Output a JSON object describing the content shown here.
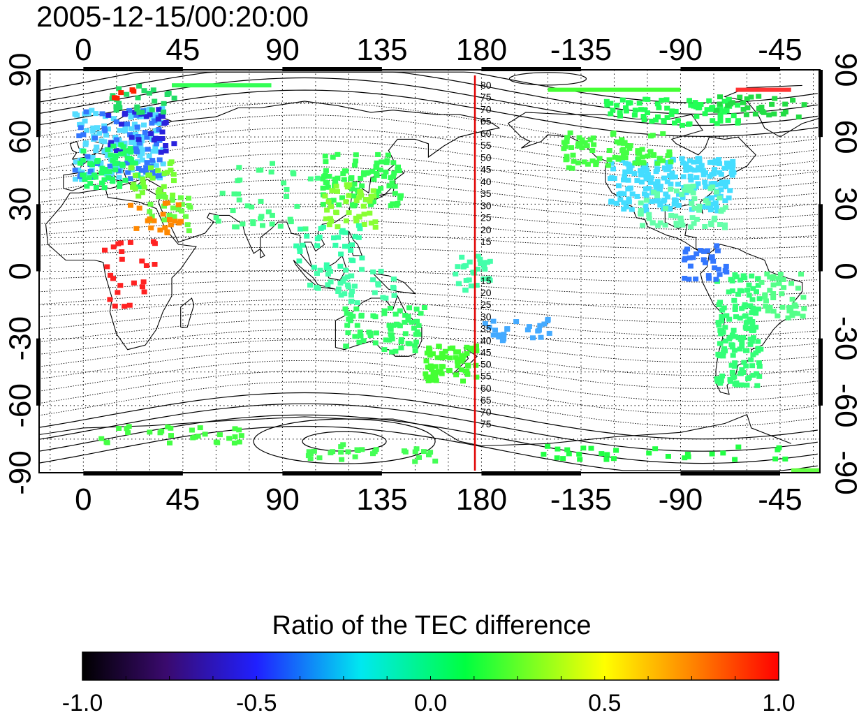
{
  "title": "2005-12-15/00:20:00",
  "map": {
    "top_ticks": [
      "0",
      "45",
      "90",
      "135",
      "180",
      "-135",
      "-90",
      "-45"
    ],
    "bottom_ticks": [
      "0",
      "45",
      "90",
      "135",
      "180",
      "-135",
      "-90",
      "-45"
    ],
    "left_ticks": [
      "90",
      "60",
      "30",
      "0",
      "-30",
      "-60",
      "-90"
    ],
    "right_ticks": [
      "90",
      "60",
      "30",
      "0",
      "-30",
      "-60",
      "-90"
    ],
    "lon_range": [
      -20,
      333
    ],
    "lat_range": [
      -90,
      90
    ],
    "grid": "dotted every 15 degrees",
    "marker_line_lon": 175,
    "marker_line_color": "#e00000",
    "contour_labels_north": [
      "80",
      "75",
      "70",
      "65",
      "60",
      "55",
      "50",
      "45",
      "40",
      "35",
      "30",
      "25",
      "20",
      "15"
    ],
    "contour_labels_south": [
      "15",
      "20",
      "25",
      "30",
      "35",
      "40",
      "45",
      "50",
      "55",
      "60",
      "65",
      "70",
      "75"
    ]
  },
  "colorbar": {
    "title": "Ratio of the TEC difference",
    "ticks": [
      "-1.0",
      "-0.5",
      "0.0",
      "0.5",
      "1.0"
    ],
    "range": [
      -1.0,
      1.0
    ],
    "colors": [
      "#000000",
      "#3a0a6e",
      "#2020ff",
      "#00e8f0",
      "#00ff40",
      "#ffff00",
      "#ff8000",
      "#ff0000"
    ]
  }
}
